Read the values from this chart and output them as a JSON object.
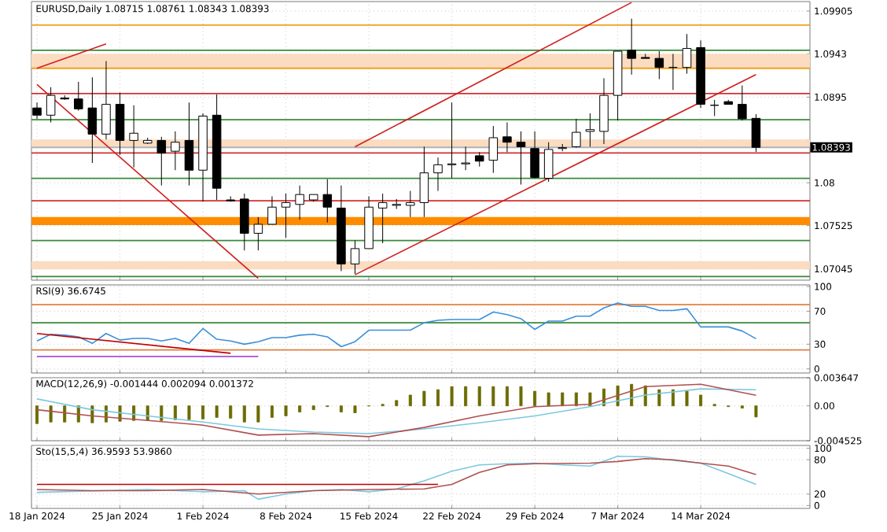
{
  "chart_data": [
    {
      "type": "candlestick",
      "title": "EURUSD,Daily 1.08715 1.08761 1.08343 1.08393",
      "categories": [
        null,
        null,
        null,
        null,
        null,
        null,
        null,
        null,
        null,
        null,
        null,
        null,
        null,
        null,
        null,
        null,
        null,
        null,
        null,
        null,
        null,
        null,
        null,
        null,
        null,
        null,
        null,
        null,
        null,
        null,
        null,
        null,
        null,
        null,
        null,
        null,
        null,
        null,
        null,
        null,
        null,
        null,
        null,
        null,
        null,
        null,
        null,
        null,
        null,
        null,
        null,
        null,
        null
      ],
      "ohlc": [
        [
          1.0883,
          1.0889,
          1.0871,
          1.0875
        ],
        [
          1.0875,
          1.0906,
          1.0867,
          1.0897
        ],
        [
          1.0894,
          1.0897,
          1.0892,
          1.0893
        ],
        [
          1.0893,
          1.0912,
          1.088,
          1.0882
        ],
        [
          1.0883,
          1.0917,
          1.0822,
          1.0854
        ],
        [
          1.0854,
          1.0935,
          1.0848,
          1.0887
        ],
        [
          1.0887,
          1.09,
          1.0831,
          1.0847
        ],
        [
          1.0847,
          1.0886,
          1.0817,
          1.0855
        ],
        [
          1.0844,
          1.085,
          1.0843,
          1.0847
        ],
        [
          1.0847,
          1.0851,
          1.0797,
          1.0833
        ],
        [
          1.0835,
          1.0857,
          1.0814,
          1.0845
        ],
        [
          1.0847,
          1.0889,
          1.0797,
          1.0814
        ],
        [
          1.0814,
          1.0877,
          1.0779,
          1.0874
        ],
        [
          1.0875,
          1.0898,
          1.0781,
          1.0794
        ],
        [
          1.0781,
          1.0785,
          1.0779,
          1.078
        ],
        [
          1.0782,
          1.0788,
          1.0725,
          1.0744
        ],
        [
          1.0744,
          1.0762,
          1.0725,
          1.0754
        ],
        [
          1.0754,
          1.0785,
          1.0754,
          1.0773
        ],
        [
          1.0773,
          1.0788,
          1.0739,
          1.0778
        ],
        [
          1.0776,
          1.0797,
          1.0759,
          1.0787
        ],
        [
          1.0781,
          1.0787,
          1.0779,
          1.0787
        ],
        [
          1.0787,
          1.0804,
          1.0756,
          1.0773
        ],
        [
          1.0772,
          1.0797,
          1.0702,
          1.071
        ],
        [
          1.071,
          1.0736,
          1.0699,
          1.0727
        ],
        [
          1.0727,
          1.0785,
          1.0727,
          1.0773
        ],
        [
          1.0772,
          1.0788,
          1.0733,
          1.0778
        ],
        [
          1.0775,
          1.0782,
          1.0771,
          1.0776
        ],
        [
          1.0775,
          1.0791,
          1.0762,
          1.0778
        ],
        [
          1.0778,
          1.084,
          1.0762,
          1.0811
        ],
        [
          1.0811,
          1.0828,
          1.0791,
          1.082
        ],
        [
          1.082,
          1.0889,
          1.0805,
          1.0821
        ],
        [
          1.0821,
          1.084,
          1.0814,
          1.0822
        ],
        [
          1.083,
          1.0834,
          1.0818,
          1.0824
        ],
        [
          1.0825,
          1.0863,
          1.0811,
          1.085
        ],
        [
          1.0851,
          1.0867,
          1.0834,
          1.0845
        ],
        [
          1.0845,
          1.0857,
          1.0798,
          1.084
        ],
        [
          1.0838,
          1.0857,
          1.0805,
          1.0806
        ],
        [
          1.0805,
          1.0845,
          1.0801,
          1.0837
        ],
        [
          1.0838,
          1.0843,
          1.0835,
          1.0839
        ],
        [
          1.084,
          1.0871,
          1.0839,
          1.0856
        ],
        [
          1.0857,
          1.0877,
          1.084,
          1.0859
        ],
        [
          1.0857,
          1.0916,
          1.0843,
          1.0897
        ],
        [
          1.0897,
          1.0946,
          1.0869,
          1.0946
        ],
        [
          1.0947,
          1.0982,
          1.092,
          1.0938
        ],
        [
          1.0939,
          1.0943,
          1.0938,
          1.0938
        ],
        [
          1.0938,
          1.0946,
          1.0915,
          1.0928
        ],
        [
          1.0928,
          1.0943,
          1.0903,
          1.0928
        ],
        [
          1.0928,
          1.0965,
          1.0921,
          1.0949
        ],
        [
          1.095,
          1.0958,
          1.0883,
          1.0887
        ],
        [
          1.0886,
          1.0892,
          1.0874,
          1.0886
        ],
        [
          1.089,
          1.0892,
          1.0887,
          1.0887
        ],
        [
          1.0887,
          1.0908,
          1.0869,
          1.0871
        ],
        [
          1.08715,
          1.08761,
          1.08343,
          1.08393
        ]
      ],
      "series": [
        {
          "type": "line",
          "color": "#d02020",
          "values": [
            1.0927,
            null,
            null,
            null,
            null,
            1.0954,
            null,
            null,
            null,
            null,
            null,
            null,
            null,
            null,
            null,
            null,
            null,
            null,
            null,
            null,
            null,
            null,
            null,
            null,
            null,
            null,
            null,
            null,
            null,
            null,
            null,
            null,
            null,
            null,
            null,
            null,
            null,
            null,
            null,
            null,
            null,
            null,
            null,
            null,
            null,
            null,
            null,
            null,
            null,
            null,
            null,
            null,
            null
          ]
        },
        {
          "type": "line",
          "color": "#d02020",
          "values": [
            1.0909,
            null,
            null,
            null,
            null,
            null,
            null,
            null,
            null,
            null,
            null,
            null,
            null,
            null,
            null,
            null,
            1.0694,
            null,
            null,
            null,
            null,
            null,
            null,
            null,
            null,
            null,
            null,
            null,
            null,
            null,
            null,
            null,
            null,
            null,
            null,
            null,
            null,
            null,
            null,
            null,
            null,
            null,
            null,
            null,
            null,
            null,
            null,
            null,
            null,
            null,
            null,
            null,
            null
          ]
        },
        {
          "type": "line",
          "color": "#d02020",
          "values": [
            null,
            null,
            null,
            null,
            null,
            null,
            null,
            null,
            null,
            null,
            null,
            null,
            null,
            null,
            null,
            null,
            null,
            null,
            null,
            null,
            null,
            null,
            null,
            1.084,
            null,
            null,
            null,
            null,
            null,
            null,
            null,
            null,
            null,
            null,
            null,
            null,
            null,
            null,
            null,
            null,
            null,
            null,
            null,
            1.1,
            null,
            null,
            null,
            null,
            null,
            null,
            null,
            null,
            null
          ]
        },
        {
          "type": "line",
          "color": "#d02020",
          "values": [
            null,
            null,
            null,
            null,
            null,
            null,
            null,
            null,
            null,
            null,
            null,
            null,
            null,
            null,
            null,
            null,
            null,
            null,
            null,
            null,
            null,
            null,
            null,
            1.0698,
            null,
            null,
            null,
            null,
            null,
            null,
            null,
            null,
            null,
            null,
            null,
            null,
            null,
            null,
            null,
            null,
            null,
            null,
            null,
            null,
            null,
            null,
            null,
            null,
            null,
            null,
            null,
            null,
            1.092
          ]
        }
      ],
      "bands": [
        {
          "axis": "y",
          "from": 1.0927,
          "to": 1.0943,
          "color": "#fbdcc0"
        },
        {
          "axis": "y",
          "from": 1.084,
          "to": 1.0848,
          "color": "#fbdcc0"
        },
        {
          "axis": "y",
          "from": 1.0704,
          "to": 1.0713,
          "color": "#fbdcc0"
        },
        {
          "axis": "y",
          "from": 1.0753,
          "to": 1.0762,
          "color": "#ff8c00"
        }
      ],
      "ref_lines": [
        {
          "axis": "y",
          "value": 1.0975,
          "color": "#f0a020"
        },
        {
          "axis": "y",
          "value": 1.0947,
          "color": "#3a8a3a"
        },
        {
          "axis": "y",
          "value": 1.0927,
          "color": "#f0a020"
        },
        {
          "axis": "y",
          "value": 1.0899,
          "color": "#d03030"
        },
        {
          "axis": "y",
          "value": 1.087,
          "color": "#3a8a3a"
        },
        {
          "axis": "y",
          "value": 1.0833,
          "color": "#d03030"
        },
        {
          "axis": "y",
          "value": 1.0805,
          "color": "#3a8a3a"
        },
        {
          "axis": "y",
          "value": 1.078,
          "color": "#d03030"
        },
        {
          "axis": "y",
          "value": 1.0736,
          "color": "#3a8a3a"
        },
        {
          "axis": "y",
          "value": 1.0696,
          "color": "#3a8a3a"
        },
        {
          "axis": "y",
          "value": 1.08393,
          "color": "#b0b0b0",
          "label": "1.08393"
        }
      ],
      "ylim": [
        1.0692,
        1.1001
      ],
      "yticks": [
        1.09905,
        1.0943,
        1.0895,
        {
          "value": 1.08475,
          "label": null
        },
        1.08,
        1.07525,
        1.07045
      ],
      "tick_labels": "y",
      "grid": true
    },
    {
      "type": "line",
      "title": "RSI(9) 36.6745",
      "categories": [
        null,
        null,
        null,
        null,
        null,
        null,
        null,
        null,
        null,
        null,
        null,
        null,
        null,
        null,
        null,
        null,
        null,
        null,
        null,
        null,
        null,
        null,
        null,
        null,
        null,
        null,
        null,
        null,
        null,
        null,
        null,
        null,
        null,
        null,
        null,
        null,
        null,
        null,
        null,
        null,
        null,
        null,
        null,
        null,
        null,
        null,
        null,
        null,
        null,
        null,
        null,
        null,
        null
      ],
      "series": [
        {
          "color": "#3a8fd8",
          "values": [
            34,
            42,
            41,
            39,
            31,
            43,
            35,
            37,
            37,
            34,
            37,
            31,
            49,
            36,
            34,
            30,
            33,
            38,
            38,
            41,
            42,
            39,
            27,
            33,
            47,
            47,
            47,
            47,
            56,
            59,
            60,
            60,
            60,
            69,
            66,
            61,
            48,
            58,
            58,
            64,
            64,
            74,
            80,
            76,
            76,
            71,
            71,
            73,
            51,
            51,
            51,
            46,
            36.6745
          ]
        },
        {
          "type": "line",
          "color": "#c00000",
          "values": [
            43,
            null,
            null,
            null,
            null,
            null,
            null,
            null,
            null,
            null,
            null,
            null,
            null,
            null,
            19,
            null,
            null,
            null,
            null,
            null,
            null,
            null,
            null,
            null,
            null,
            null,
            null,
            null,
            null,
            null,
            null,
            null,
            null,
            null,
            null,
            null,
            null,
            null,
            null,
            null,
            null,
            null,
            null,
            null,
            null,
            null,
            null,
            null,
            null,
            null,
            null,
            null,
            null
          ]
        },
        {
          "type": "line",
          "color": "#9932cc",
          "values": [
            15,
            null,
            null,
            null,
            null,
            null,
            null,
            null,
            null,
            null,
            null,
            null,
            null,
            null,
            null,
            null,
            15,
            null,
            null,
            null,
            null,
            null,
            null,
            null,
            null,
            null,
            null,
            null,
            null,
            null,
            null,
            null,
            null,
            null,
            null,
            null,
            null,
            null,
            null,
            null,
            null,
            null,
            null,
            null,
            null,
            null,
            null,
            null,
            null,
            null,
            null,
            null,
            null
          ]
        }
      ],
      "ref_lines": [
        {
          "axis": "y",
          "value": 78,
          "color": "#e08040"
        },
        {
          "axis": "y",
          "value": 56,
          "color": "#3a8a3a"
        },
        {
          "axis": "y",
          "value": 23,
          "color": "#e08040"
        }
      ],
      "ylim": [
        -5,
        102
      ],
      "yticks": [
        0,
        30,
        70,
        100
      ],
      "tick_labels": "y",
      "grid": true
    },
    {
      "type": "bar",
      "title": "MACD(12,26,9) -0.001444 0.002094 0.001372",
      "categories": [
        null,
        null,
        null,
        null,
        null,
        null,
        null,
        null,
        null,
        null,
        null,
        null,
        null,
        null,
        null,
        null,
        null,
        null,
        null,
        null,
        null,
        null,
        null,
        null,
        null,
        null,
        null,
        null,
        null,
        null,
        null,
        null,
        null,
        null,
        null,
        null,
        null,
        null,
        null,
        null,
        null,
        null,
        null,
        null,
        null,
        null,
        null,
        null,
        null,
        null,
        null,
        null,
        null
      ],
      "series": [
        {
          "type": "bar",
          "color": "#6b6b00",
          "values": [
            -0.0023,
            -0.0021,
            -0.0021,
            -0.0021,
            -0.0022,
            -0.0021,
            -0.002,
            -0.0019,
            -0.0019,
            -0.0019,
            -0.0018,
            -0.0018,
            -0.0017,
            -0.0015,
            -0.0016,
            -0.0021,
            -0.0021,
            -0.0015,
            -0.0013,
            -0.0008,
            -0.0005,
            -0.0001,
            -0.0008,
            -0.0009,
            0.0,
            0.0002,
            0.0007,
            0.0014,
            0.0019,
            0.0021,
            0.0025,
            0.0025,
            0.0025,
            0.0025,
            0.0025,
            0.0025,
            0.0019,
            0.0017,
            0.0017,
            0.0017,
            0.0017,
            0.0022,
            0.0026,
            0.0028,
            0.0026,
            0.0021,
            0.0021,
            0.0019,
            0.0014,
            0.0002,
            -0.0001,
            -0.0003,
            -0.001444
          ]
        },
        {
          "type": "line",
          "color": "#7cc8e0",
          "values": [
            0.0009,
            null,
            null,
            null,
            -0.0005,
            null,
            null,
            null,
            -0.0013,
            null,
            null,
            null,
            -0.0021,
            null,
            null,
            null,
            -0.003,
            null,
            null,
            null,
            -0.0034,
            null,
            null,
            null,
            -0.0036,
            null,
            null,
            null,
            -0.003,
            null,
            null,
            null,
            -0.0022,
            null,
            null,
            null,
            -0.0013,
            null,
            null,
            null,
            -0.0001,
            null,
            null,
            null,
            0.0014,
            null,
            null,
            null,
            0.0022,
            null,
            null,
            null,
            0.002094
          ]
        },
        {
          "type": "line",
          "color": "#b05050",
          "values": [
            -0.0005,
            null,
            null,
            null,
            -0.0013,
            null,
            null,
            null,
            -0.0019,
            null,
            null,
            null,
            -0.0025,
            null,
            null,
            null,
            -0.0038,
            null,
            null,
            null,
            -0.0036,
            null,
            null,
            null,
            -0.004,
            null,
            null,
            null,
            -0.0028,
            null,
            null,
            null,
            -0.0013,
            null,
            null,
            null,
            -0.0001,
            null,
            null,
            null,
            0.0002,
            null,
            null,
            null,
            0.0025,
            null,
            null,
            null,
            0.0028,
            null,
            null,
            null,
            0.001372
          ]
        }
      ],
      "ylim": [
        -0.004525,
        0.003647
      ],
      "yticks": [
        -0.004525,
        {
          "value": 0,
          "label": "0.00"
        },
        0.003647
      ],
      "tick_labels": "y",
      "grid": true
    },
    {
      "type": "line",
      "title": "Sto(15,5,4) 36.9593 53.9860",
      "categories": [
        "18 Jan 2024",
        null,
        null,
        null,
        null,
        null,
        "25 Jan 2024",
        null,
        null,
        null,
        null,
        null,
        "1 Feb 2024",
        null,
        null,
        null,
        null,
        null,
        "8 Feb 2024",
        null,
        null,
        null,
        null,
        null,
        "15 Feb 2024",
        null,
        null,
        null,
        null,
        null,
        "22 Feb 2024",
        null,
        null,
        null,
        null,
        null,
        "29 Feb 2024",
        null,
        null,
        null,
        null,
        null,
        "7 Mar 2024",
        null,
        null,
        null,
        null,
        null,
        "14 Mar 2024",
        null,
        null,
        null,
        null
      ],
      "series": [
        {
          "color": "#7cc8e0",
          "values": [
            23,
            null,
            null,
            null,
            null,
            null,
            null,
            null,
            28,
            null,
            null,
            null,
            24,
            null,
            null,
            26,
            11,
            null,
            20,
            null,
            26,
            null,
            28,
            null,
            24,
            null,
            29,
            null,
            43,
            null,
            60,
            null,
            71,
            null,
            73,
            null,
            74,
            null,
            71,
            null,
            69,
            null,
            86,
            null,
            85,
            null,
            79,
            null,
            74,
            null,
            56,
            null,
            36.9593
          ]
        },
        {
          "color": "#b05050",
          "values": [
            28,
            null,
            null,
            null,
            26,
            null,
            null,
            null,
            26,
            null,
            null,
            null,
            28,
            null,
            null,
            null,
            20,
            null,
            null,
            null,
            26,
            null,
            null,
            null,
            28,
            null,
            null,
            null,
            29,
            null,
            37,
            null,
            58,
            null,
            71,
            null,
            73,
            null,
            null,
            null,
            74,
            null,
            77,
            null,
            82,
            null,
            80,
            null,
            74,
            null,
            69,
            null,
            53.986
          ]
        },
        {
          "color": "#c00000",
          "values": [
            37,
            null,
            null,
            null,
            null,
            null,
            null,
            null,
            null,
            null,
            null,
            null,
            null,
            null,
            null,
            null,
            null,
            null,
            null,
            null,
            null,
            null,
            null,
            null,
            null,
            null,
            null,
            null,
            null,
            37,
            null,
            null,
            null,
            null,
            null,
            null,
            null,
            null,
            null,
            null,
            null,
            null,
            null,
            null,
            null,
            null,
            null,
            null,
            null,
            null,
            null,
            null,
            null
          ]
        }
      ],
      "ylim": [
        -5,
        105
      ],
      "yticks": [
        0,
        20,
        80,
        100
      ],
      "grid": true
    }
  ]
}
